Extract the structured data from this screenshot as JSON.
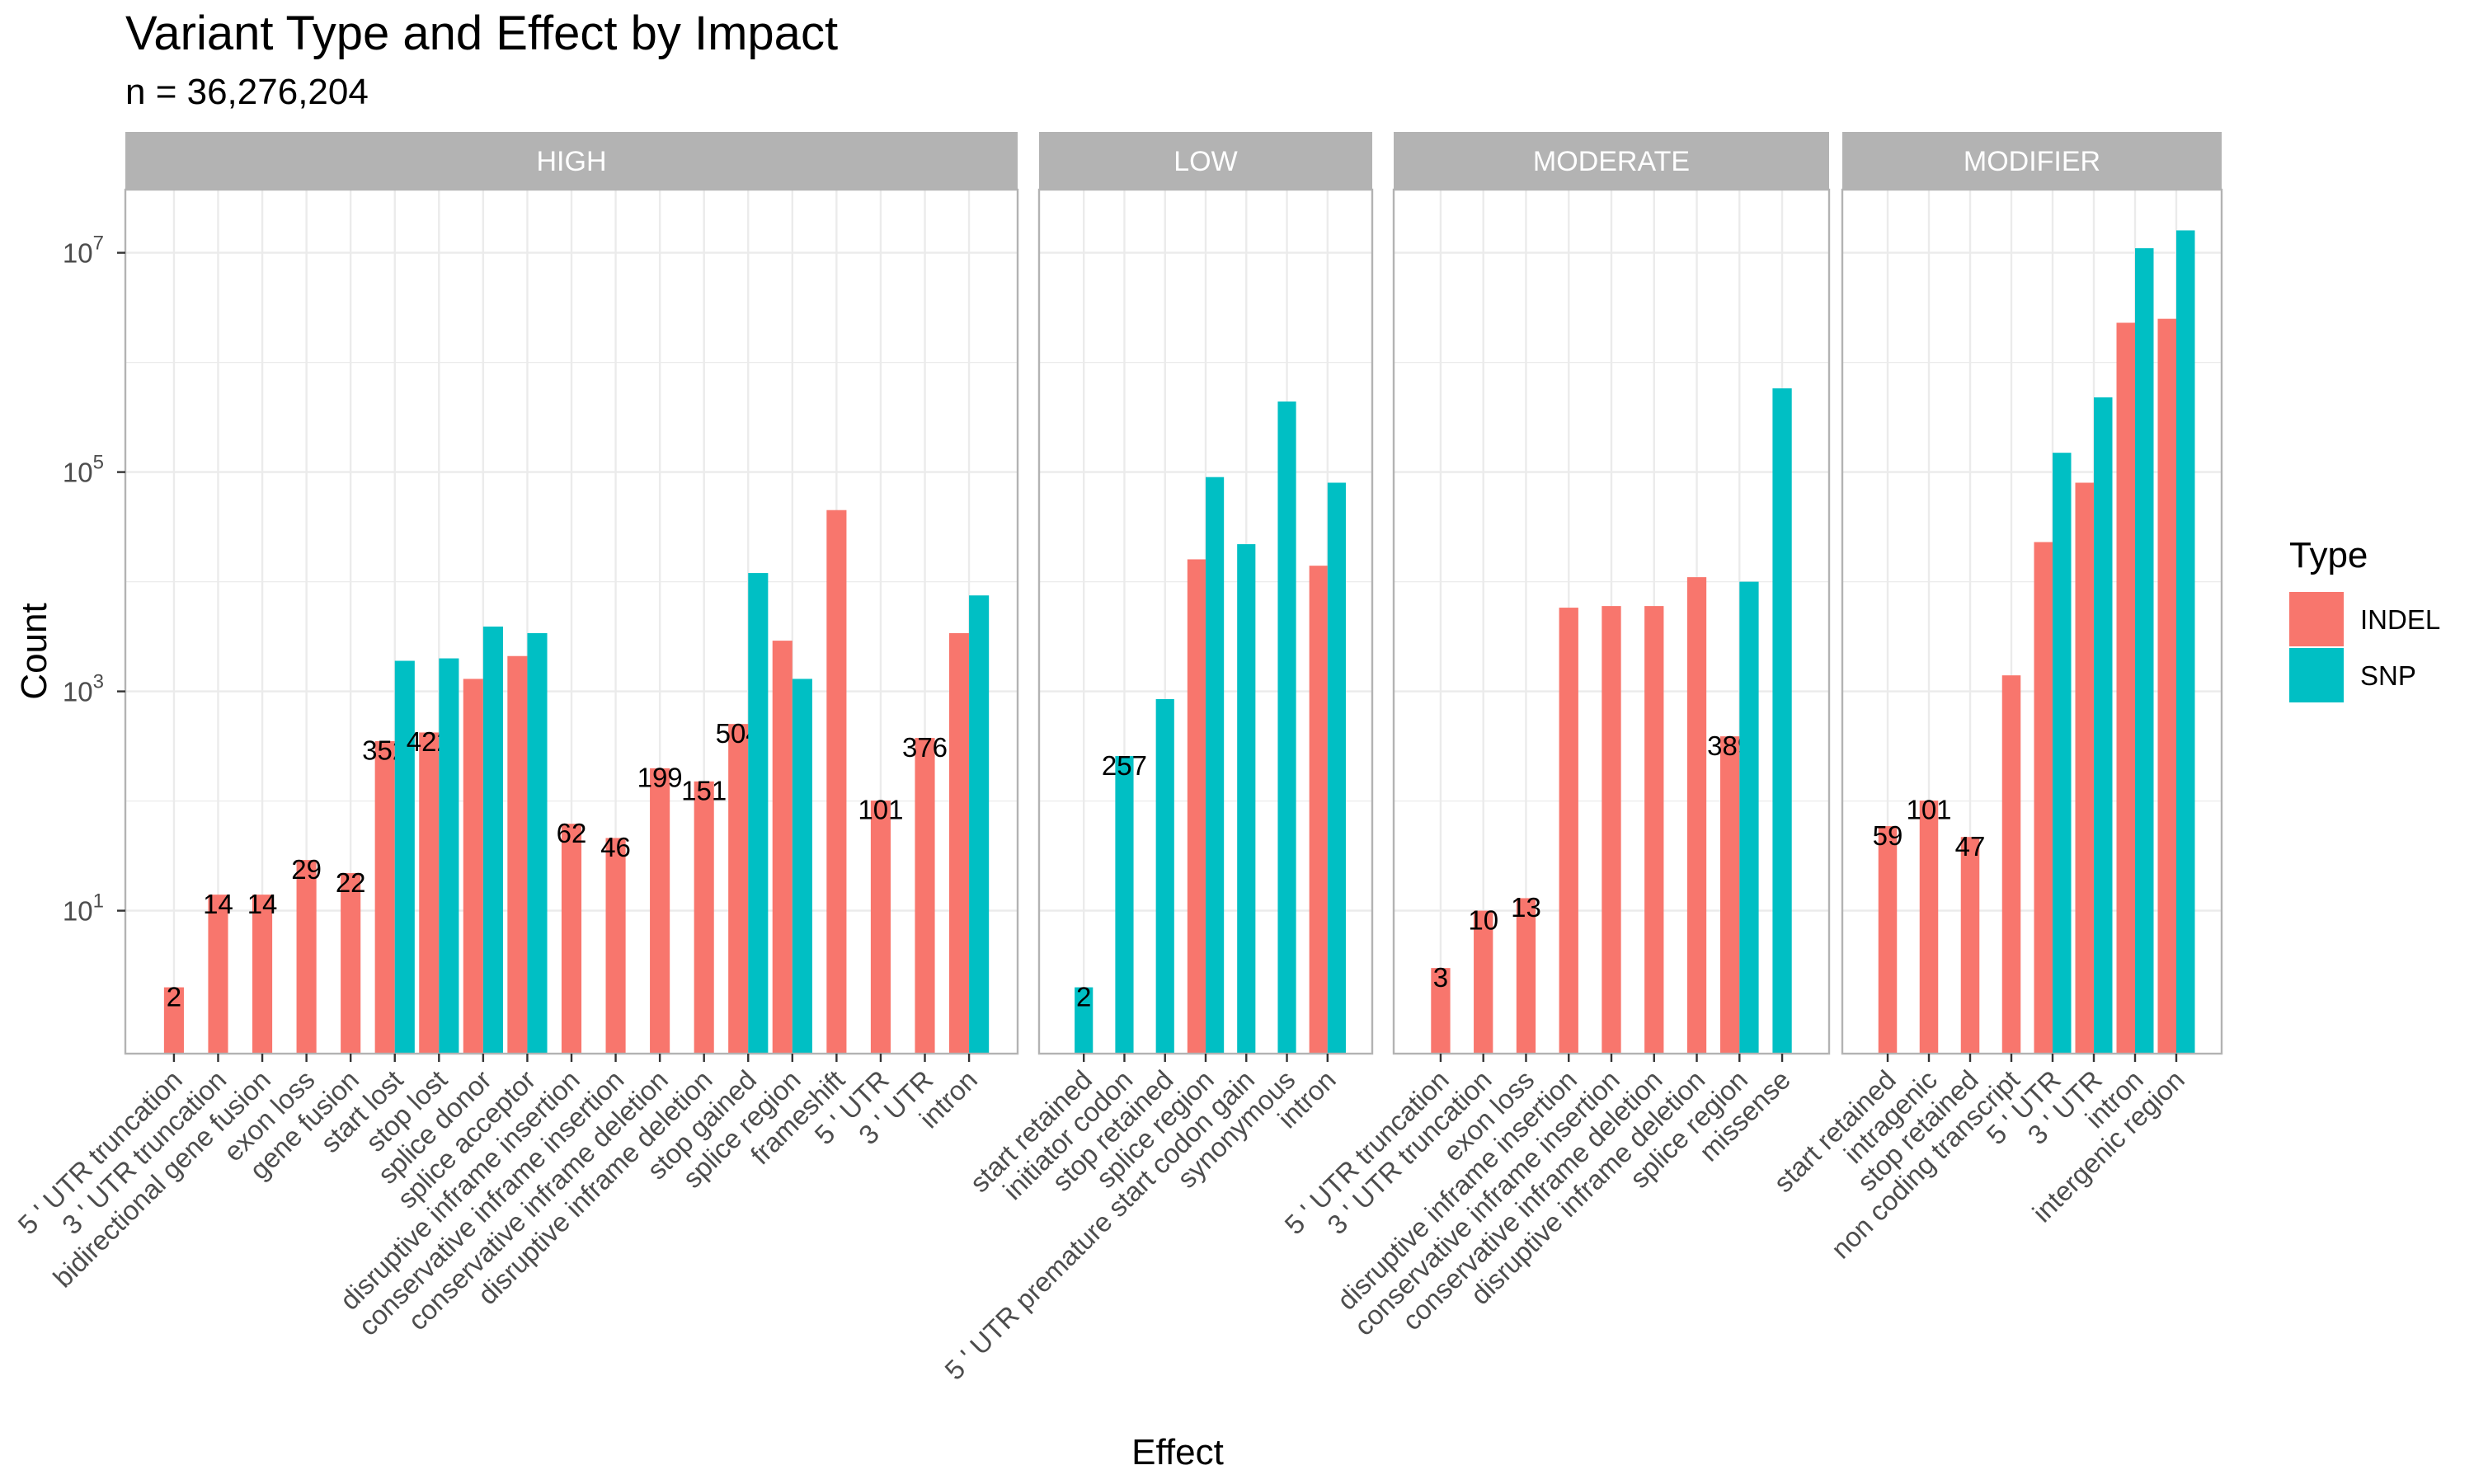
{
  "chart_data": {
    "type": "bar",
    "title": "Variant Type and Effect by Impact",
    "subtitle": "n = 36,276,204",
    "xlabel": "Effect",
    "ylabel": "Count",
    "y_scale": "log10",
    "y_ticks": [
      {
        "value": 10,
        "base": "10",
        "exp": "1"
      },
      {
        "value": 1000,
        "base": "10",
        "exp": "3"
      },
      {
        "value": 100000,
        "base": "10",
        "exp": "5"
      },
      {
        "value": 10000000,
        "base": "10",
        "exp": "7"
      }
    ],
    "ylim": [
      1,
      100000000
    ],
    "grid": true,
    "legend": {
      "title": "Type",
      "position": "right",
      "entries": [
        {
          "name": "INDEL",
          "color": "#F8766D"
        },
        {
          "name": "SNP",
          "color": "#00BFC4"
        }
      ]
    },
    "colors": {
      "INDEL": "#F8766D",
      "SNP": "#00BFC4",
      "strip": "#B3B3B3",
      "grid": "#EBEBEB",
      "border": "#B3B3B3"
    },
    "facets": [
      {
        "name": "HIGH",
        "categories": [
          {
            "label": "5 ' UTR truncation",
            "INDEL": 2,
            "INDEL_label": "2"
          },
          {
            "label": "3 ' UTR truncation",
            "INDEL": 14,
            "INDEL_label": "14"
          },
          {
            "label": "bidirectional gene fusion",
            "INDEL": 14,
            "INDEL_label": "14"
          },
          {
            "label": "exon loss",
            "INDEL": 29,
            "INDEL_label": "29"
          },
          {
            "label": "gene fusion",
            "INDEL": 22,
            "INDEL_label": "22"
          },
          {
            "label": "start lost",
            "INDEL": 352,
            "SNP": 1900,
            "INDEL_label": "352"
          },
          {
            "label": "stop lost",
            "INDEL": 422,
            "SNP": 2000,
            "INDEL_label": "422"
          },
          {
            "label": "splice donor",
            "INDEL": 1300,
            "SNP": 3900
          },
          {
            "label": "splice acceptor",
            "INDEL": 2100,
            "SNP": 3400
          },
          {
            "label": "disruptive inframe insertion",
            "INDEL": 62,
            "INDEL_label": "62"
          },
          {
            "label": "conservative inframe insertion",
            "INDEL": 46,
            "INDEL_label": "46"
          },
          {
            "label": "conservative inframe deletion",
            "INDEL": 199,
            "INDEL_label": "199"
          },
          {
            "label": "disruptive inframe deletion",
            "INDEL": 151,
            "INDEL_label": "151"
          },
          {
            "label": "stop gained",
            "INDEL": 504,
            "SNP": 12000,
            "INDEL_label": "504"
          },
          {
            "label": "splice region",
            "INDEL": 2900,
            "SNP": 1300
          },
          {
            "label": "frameshift",
            "INDEL": 45000
          },
          {
            "label": "5 ' UTR",
            "INDEL": 101,
            "INDEL_label": "101"
          },
          {
            "label": "3 ' UTR",
            "INDEL": 376,
            "INDEL_label": "376"
          },
          {
            "label": "intron",
            "INDEL": 3400,
            "SNP": 7500
          }
        ]
      },
      {
        "name": "LOW",
        "categories": [
          {
            "label": "start retained",
            "SNP": 2,
            "SNP_label": "2"
          },
          {
            "label": "initiator codon",
            "SNP": 257,
            "SNP_label": "257"
          },
          {
            "label": "stop retained",
            "SNP": 850
          },
          {
            "label": "splice region",
            "INDEL": 16000,
            "SNP": 90000
          },
          {
            "label": "5 ' UTR premature start codon gain",
            "SNP": 22000
          },
          {
            "label": "synonymous",
            "SNP": 440000
          },
          {
            "label": "intron",
            "INDEL": 14000,
            "SNP": 80000
          }
        ]
      },
      {
        "name": "MODERATE",
        "categories": [
          {
            "label": "5 ' UTR truncation",
            "INDEL": 3,
            "INDEL_label": "3"
          },
          {
            "label": "3 ' UTR truncation",
            "INDEL": 10,
            "INDEL_label": "10"
          },
          {
            "label": "exon loss",
            "INDEL": 13,
            "INDEL_label": "13"
          },
          {
            "label": "disruptive inframe insertion",
            "INDEL": 5800
          },
          {
            "label": "conservative inframe insertion",
            "INDEL": 6000
          },
          {
            "label": "conservative inframe deletion",
            "INDEL": 6000
          },
          {
            "label": "disruptive inframe deletion",
            "INDEL": 11000
          },
          {
            "label": "splice region",
            "INDEL": 389,
            "SNP": 10000,
            "INDEL_label": "389"
          },
          {
            "label": "missense",
            "SNP": 580000
          }
        ]
      },
      {
        "name": "MODIFIER",
        "categories": [
          {
            "label": "start retained",
            "INDEL": 59,
            "INDEL_label": "59"
          },
          {
            "label": "intragenic",
            "INDEL": 101,
            "INDEL_label": "101"
          },
          {
            "label": "stop retained",
            "INDEL": 47,
            "INDEL_label": "47"
          },
          {
            "label": "non coding transcript",
            "INDEL": 1400
          },
          {
            "label": "5 ' UTR",
            "INDEL": 23000,
            "SNP": 150000
          },
          {
            "label": "3 ' UTR",
            "INDEL": 80000,
            "SNP": 480000
          },
          {
            "label": "intron",
            "INDEL": 2300000,
            "SNP": 11000000
          },
          {
            "label": "intergenic region",
            "INDEL": 2500000,
            "SNP": 16000000
          }
        ]
      }
    ]
  }
}
